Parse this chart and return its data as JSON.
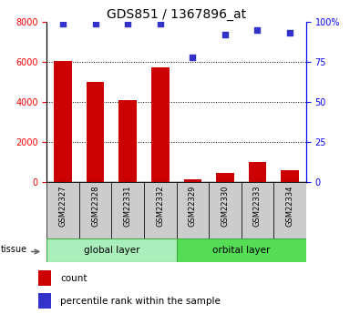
{
  "title": "GDS851 / 1367896_at",
  "samples": [
    "GSM22327",
    "GSM22328",
    "GSM22331",
    "GSM22332",
    "GSM22329",
    "GSM22330",
    "GSM22333",
    "GSM22334"
  ],
  "counts": [
    6050,
    5000,
    4100,
    5750,
    150,
    450,
    1000,
    600
  ],
  "percentiles": [
    99,
    99,
    99,
    99,
    78,
    92,
    95,
    93
  ],
  "groups": [
    "global layer",
    "orbital layer"
  ],
  "group_sizes": [
    4,
    4
  ],
  "ylim_left": [
    0,
    8000
  ],
  "ylim_right": [
    0,
    100
  ],
  "yticks_left": [
    0,
    2000,
    4000,
    6000,
    8000
  ],
  "ytick_labels_left": [
    "0",
    "2000",
    "4000",
    "6000",
    "8000"
  ],
  "yticks_right": [
    0,
    25,
    50,
    75,
    100
  ],
  "ytick_labels_right": [
    "0",
    "25",
    "50",
    "75",
    "100%"
  ],
  "bar_color": "#cc0000",
  "dot_color": "#3333cc",
  "cell_bg_color": "#cccccc",
  "group1_color": "#aaeebb",
  "group2_color": "#55dd55",
  "tissue_label": "tissue",
  "legend_count": "count",
  "legend_percentile": "percentile rank within the sample",
  "gridline_values": [
    2000,
    4000,
    6000
  ]
}
